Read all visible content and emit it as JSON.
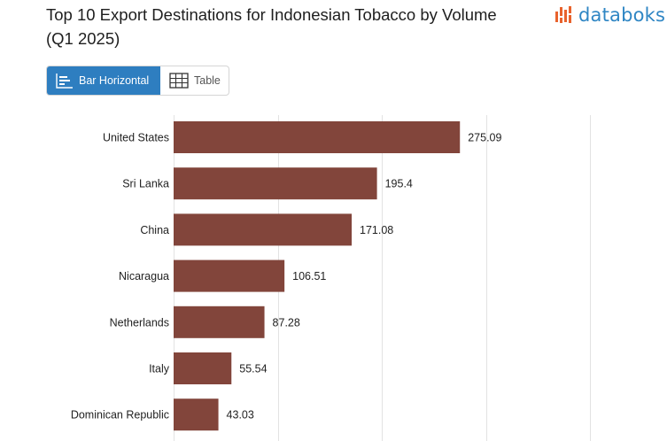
{
  "header": {
    "title": "Top 10 Export Destinations for Indonesian Tobacco by Volume (Q1 2025)",
    "logo_text": "databoks"
  },
  "toggle": {
    "bar_label": "Bar Horizontal",
    "table_label": "Table"
  },
  "colors": {
    "bar": "#82453b",
    "accent": "#2e7ec0",
    "grid": "#e2e2e2"
  },
  "chart_data": {
    "type": "bar",
    "orientation": "horizontal",
    "categories": [
      "United States",
      "Sri Lanka",
      "China",
      "Nicaragua",
      "Netherlands",
      "Italy",
      "Dominican Republic"
    ],
    "values": [
      275.09,
      195.4,
      171.08,
      106.51,
      87.28,
      55.54,
      43.03
    ],
    "value_labels": [
      "275.09",
      "195.4",
      "171.08",
      "106.51",
      "87.28",
      "55.54",
      "43.03"
    ],
    "xlim": [
      0,
      400
    ],
    "grid": true
  }
}
